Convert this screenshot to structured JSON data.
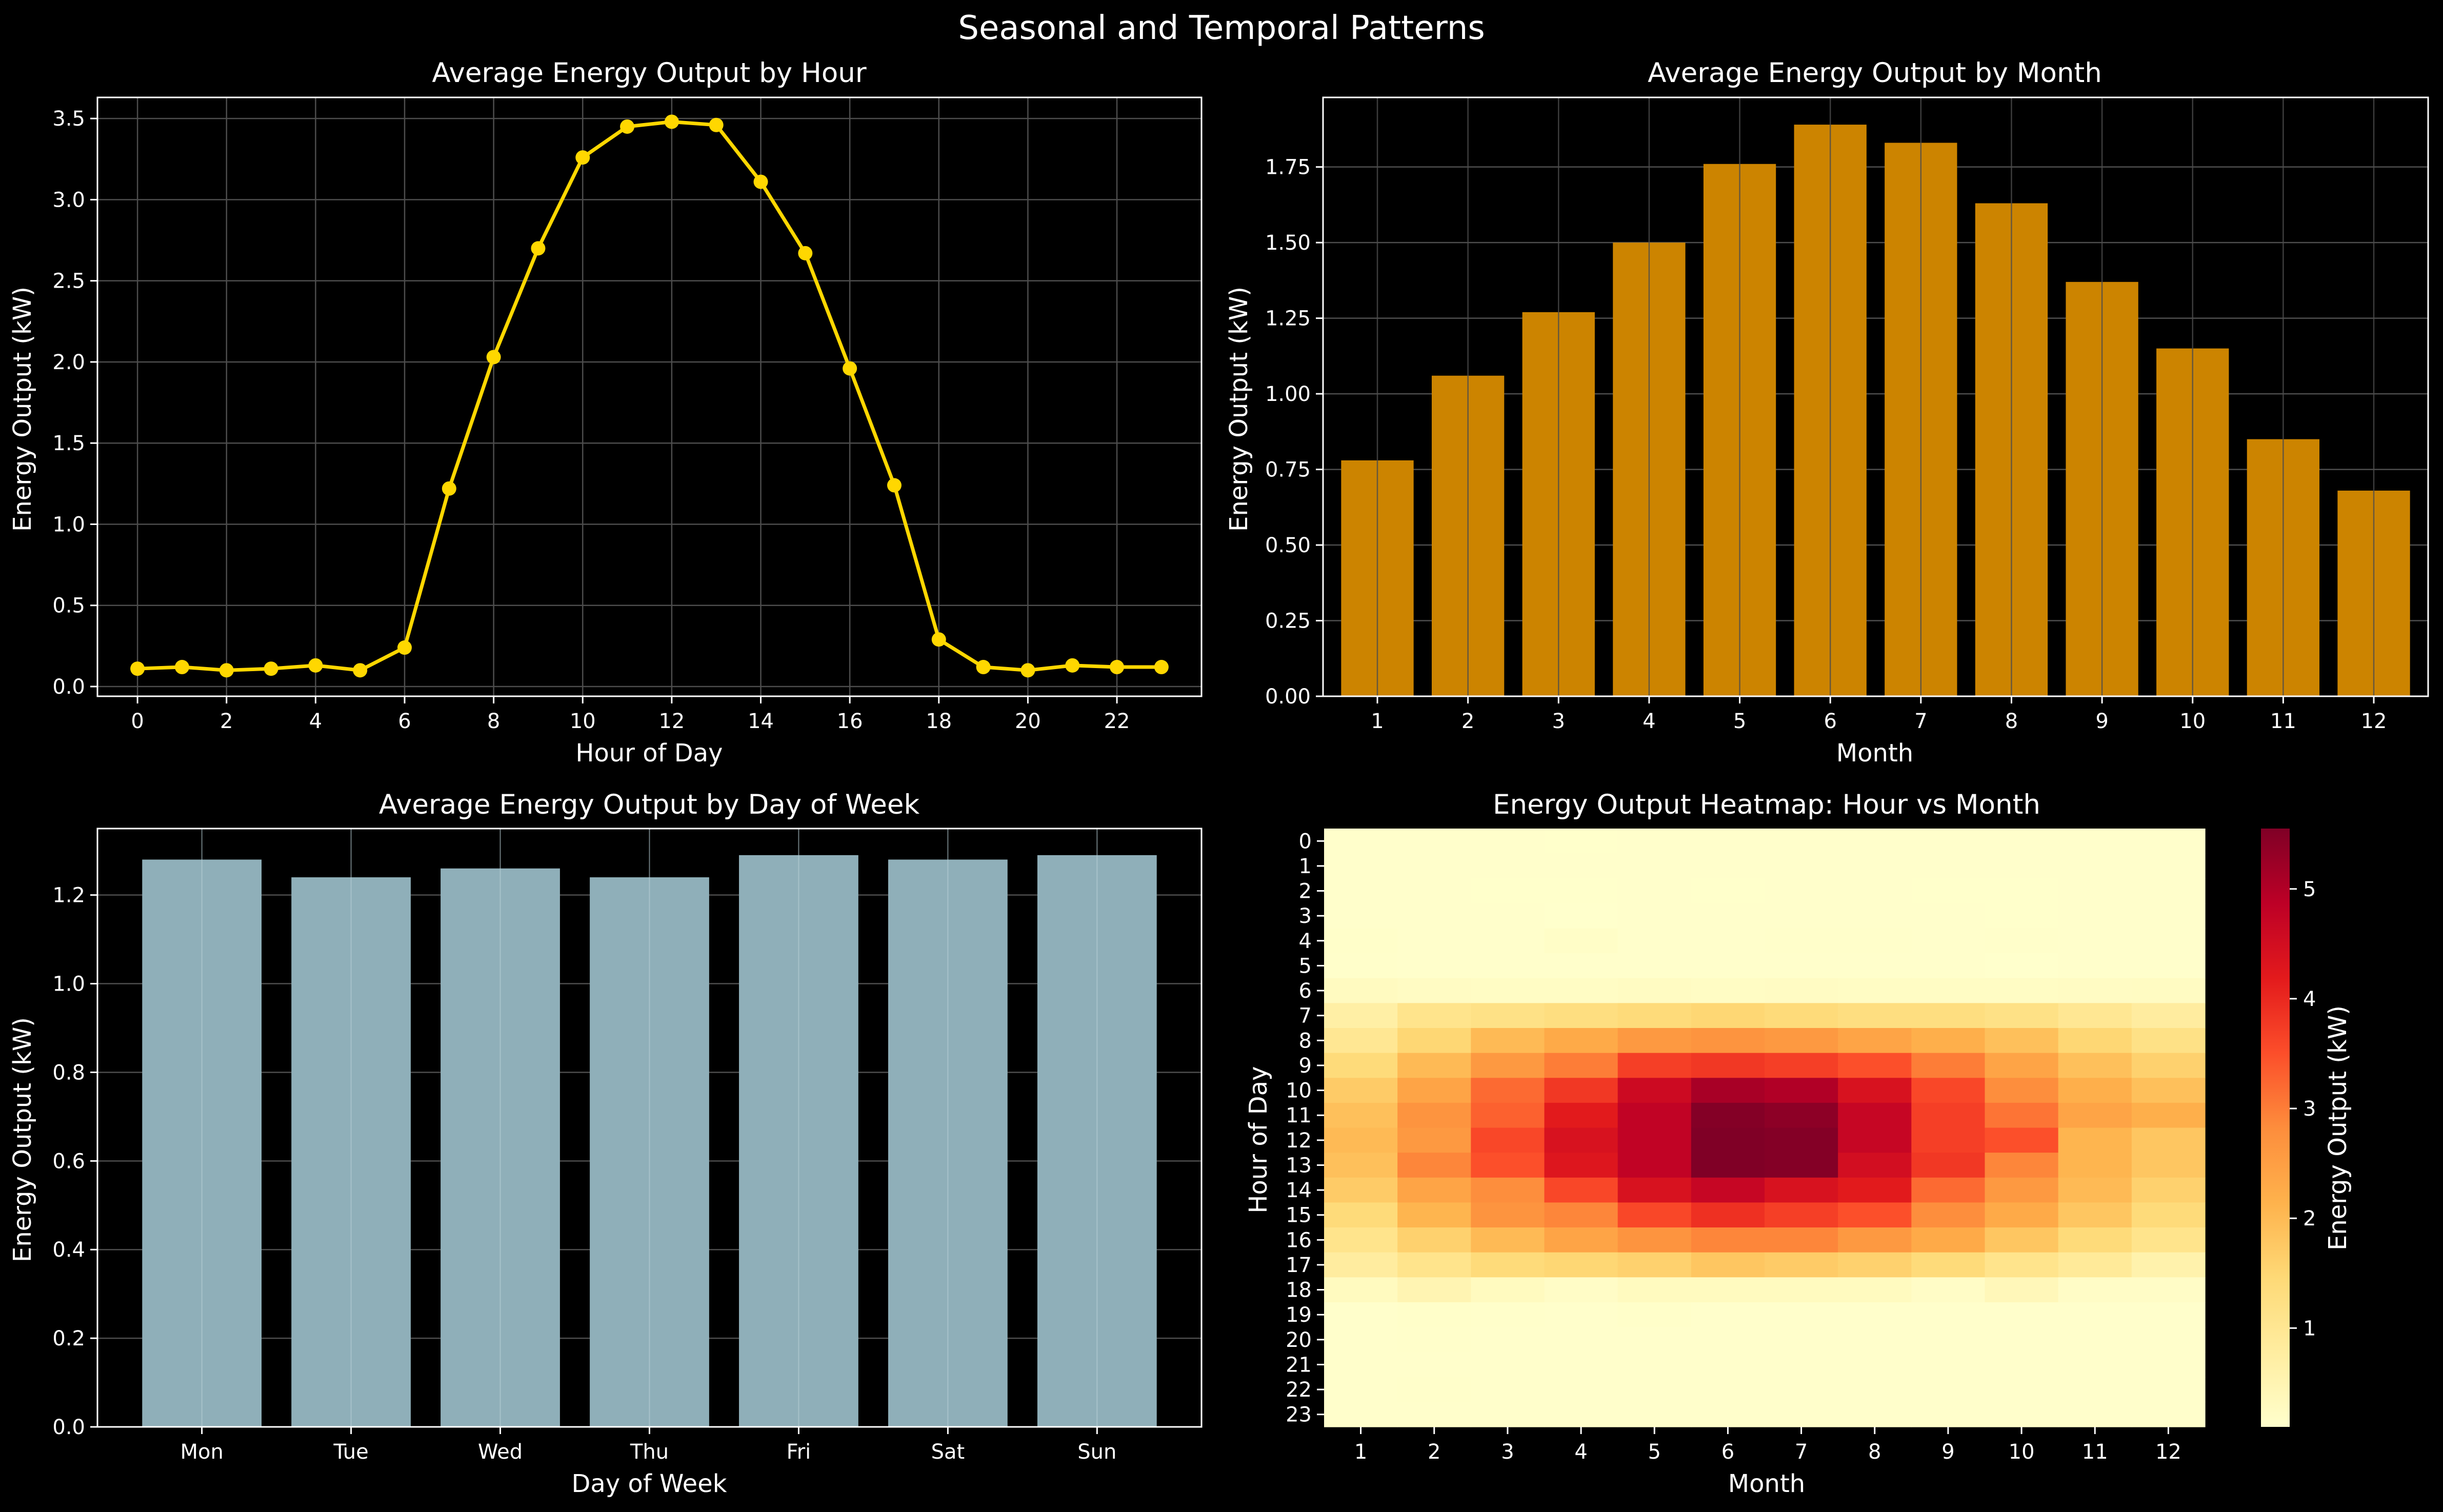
{
  "figure": {
    "suptitle": "Seasonal and Temporal Patterns",
    "colors": {
      "background": "#000000",
      "hour_line": "#FFD700",
      "month_bar": "#CC8400",
      "weekday_bar": "#8FAFB9",
      "grid": "#4D4D4D",
      "axes": "#FFFFFF"
    }
  },
  "chart_data": [
    {
      "type": "line",
      "title": "Average Energy Output by Hour",
      "xlabel": "Hour of Day",
      "ylabel": "Energy Output (kW)",
      "x": [
        0,
        1,
        2,
        3,
        4,
        5,
        6,
        7,
        8,
        9,
        10,
        11,
        12,
        13,
        14,
        15,
        16,
        17,
        18,
        19,
        20,
        21,
        22,
        23
      ],
      "series": [
        {
          "values": [
            0.11,
            0.12,
            0.1,
            0.11,
            0.13,
            0.1,
            0.24,
            1.22,
            2.03,
            2.7,
            3.26,
            3.45,
            3.48,
            3.46,
            3.11,
            2.67,
            1.96,
            1.24,
            0.29,
            0.12,
            0.1,
            0.13,
            0.12,
            0.12
          ]
        }
      ],
      "xlim": [
        -0.9,
        23.9
      ],
      "ylim": [
        -0.06,
        3.63
      ],
      "xticks": [
        "0",
        "2",
        "4",
        "6",
        "8",
        "10",
        "12",
        "14",
        "16",
        "18",
        "20",
        "22"
      ],
      "yticks": [
        "0.0",
        "0.5",
        "1.0",
        "1.5",
        "2.0",
        "2.5",
        "3.0",
        "3.5"
      ],
      "grid": true
    },
    {
      "type": "bar",
      "title": "Average Energy Output by Month",
      "xlabel": "Month",
      "ylabel": "Energy Output (kW)",
      "categories": [
        "1",
        "2",
        "3",
        "4",
        "5",
        "6",
        "7",
        "8",
        "9",
        "10",
        "11",
        "12"
      ],
      "values": [
        0.78,
        1.06,
        1.27,
        1.5,
        1.76,
        1.89,
        1.83,
        1.63,
        1.37,
        1.15,
        0.85,
        0.68
      ],
      "ylim": [
        0,
        1.98
      ],
      "yticks": [
        "0.00",
        "0.25",
        "0.50",
        "0.75",
        "1.00",
        "1.25",
        "1.50",
        "1.75"
      ],
      "grid": true
    },
    {
      "type": "bar",
      "title": "Average Energy Output by Day of Week",
      "xlabel": "Day of Week",
      "ylabel": "Energy Output (kW)",
      "categories": [
        "Mon",
        "Tue",
        "Wed",
        "Thu",
        "Fri",
        "Sat",
        "Sun"
      ],
      "values": [
        1.28,
        1.24,
        1.26,
        1.24,
        1.29,
        1.28,
        1.29
      ],
      "ylim": [
        0,
        1.35
      ],
      "yticks": [
        "0.0",
        "0.2",
        "0.4",
        "0.6",
        "0.8",
        "1.0",
        "1.2"
      ],
      "grid": true
    },
    {
      "type": "heatmap",
      "title": "Energy Output Heatmap: Hour vs Month",
      "xlabel": "Month",
      "ylabel": "Hour of Day",
      "colorbar_label": "Energy Output (kW)",
      "colorbar_ticks": [
        "1",
        "2",
        "3",
        "4",
        "5"
      ],
      "colorbar_range": [
        0.1,
        5.55
      ],
      "colormap": "YlOrRd",
      "x_categories": [
        "1",
        "2",
        "3",
        "4",
        "5",
        "6",
        "7",
        "8",
        "9",
        "10",
        "11",
        "12"
      ],
      "y_categories": [
        "0",
        "1",
        "2",
        "3",
        "4",
        "5",
        "6",
        "7",
        "8",
        "9",
        "10",
        "11",
        "12",
        "13",
        "14",
        "15",
        "16",
        "17",
        "18",
        "19",
        "20",
        "21",
        "22",
        "23"
      ],
      "values": [
        [
          0.12,
          0.12,
          0.12,
          0.11,
          0.12,
          0.12,
          0.12,
          0.12,
          0.12,
          0.12,
          0.12,
          0.12
        ],
        [
          0.12,
          0.12,
          0.12,
          0.12,
          0.12,
          0.12,
          0.12,
          0.12,
          0.12,
          0.12,
          0.12,
          0.12
        ],
        [
          0.12,
          0.12,
          0.11,
          0.11,
          0.12,
          0.11,
          0.12,
          0.12,
          0.11,
          0.11,
          0.12,
          0.12
        ],
        [
          0.12,
          0.12,
          0.12,
          0.1,
          0.12,
          0.12,
          0.12,
          0.12,
          0.12,
          0.11,
          0.12,
          0.12
        ],
        [
          0.15,
          0.12,
          0.12,
          0.18,
          0.12,
          0.12,
          0.13,
          0.13,
          0.12,
          0.13,
          0.12,
          0.12
        ],
        [
          0.13,
          0.12,
          0.12,
          0.12,
          0.12,
          0.12,
          0.12,
          0.12,
          0.12,
          0.1,
          0.12,
          0.12
        ],
        [
          0.28,
          0.24,
          0.22,
          0.22,
          0.25,
          0.22,
          0.24,
          0.23,
          0.23,
          0.23,
          0.24,
          0.25
        ],
        [
          0.7,
          1.1,
          1.2,
          1.3,
          1.4,
          1.5,
          1.4,
          1.3,
          1.3,
          1.2,
          1.0,
          0.8
        ],
        [
          1.0,
          1.5,
          2.0,
          2.3,
          2.6,
          2.7,
          2.6,
          2.4,
          2.2,
          1.9,
          1.5,
          1.2
        ],
        [
          1.4,
          2.0,
          2.6,
          3.0,
          3.7,
          3.8,
          3.7,
          3.5,
          3.0,
          2.4,
          1.9,
          1.6
        ],
        [
          1.7,
          2.4,
          3.2,
          3.8,
          4.6,
          5.1,
          5.0,
          4.4,
          3.6,
          2.8,
          2.2,
          1.9
        ],
        [
          1.9,
          2.7,
          3.3,
          4.2,
          4.8,
          5.5,
          5.4,
          4.7,
          3.7,
          3.1,
          2.4,
          2.2
        ],
        [
          2.0,
          2.6,
          3.6,
          4.4,
          4.8,
          5.6,
          5.5,
          4.7,
          3.7,
          3.5,
          2.1,
          1.8
        ],
        [
          1.9,
          2.9,
          3.5,
          4.3,
          4.8,
          5.6,
          5.5,
          4.5,
          3.8,
          2.9,
          2.1,
          1.8
        ],
        [
          1.7,
          2.4,
          2.8,
          3.6,
          4.4,
          4.7,
          4.4,
          4.2,
          3.2,
          2.6,
          2.0,
          1.6
        ],
        [
          1.4,
          2.1,
          2.7,
          2.9,
          3.6,
          3.9,
          3.7,
          3.5,
          2.8,
          2.3,
          1.8,
          1.4
        ],
        [
          1.1,
          1.6,
          2.0,
          2.4,
          2.7,
          2.9,
          2.9,
          2.6,
          2.3,
          1.8,
          1.4,
          1.1
        ],
        [
          0.8,
          1.1,
          1.4,
          1.5,
          1.6,
          1.8,
          1.7,
          1.6,
          1.4,
          1.1,
          0.9,
          0.6
        ],
        [
          0.3,
          0.5,
          0.3,
          0.2,
          0.3,
          0.3,
          0.3,
          0.3,
          0.2,
          0.4,
          0.2,
          0.2
        ],
        [
          0.12,
          0.14,
          0.13,
          0.12,
          0.14,
          0.12,
          0.12,
          0.12,
          0.12,
          0.12,
          0.12,
          0.12
        ],
        [
          0.12,
          0.13,
          0.12,
          0.12,
          0.12,
          0.12,
          0.12,
          0.12,
          0.12,
          0.12,
          0.12,
          0.12
        ],
        [
          0.12,
          0.12,
          0.12,
          0.12,
          0.12,
          0.12,
          0.12,
          0.12,
          0.12,
          0.12,
          0.12,
          0.12
        ],
        [
          0.12,
          0.13,
          0.12,
          0.12,
          0.12,
          0.12,
          0.12,
          0.12,
          0.12,
          0.12,
          0.12,
          0.12
        ],
        [
          0.12,
          0.12,
          0.12,
          0.12,
          0.12,
          0.12,
          0.12,
          0.12,
          0.12,
          0.12,
          0.12,
          0.12
        ]
      ]
    }
  ]
}
